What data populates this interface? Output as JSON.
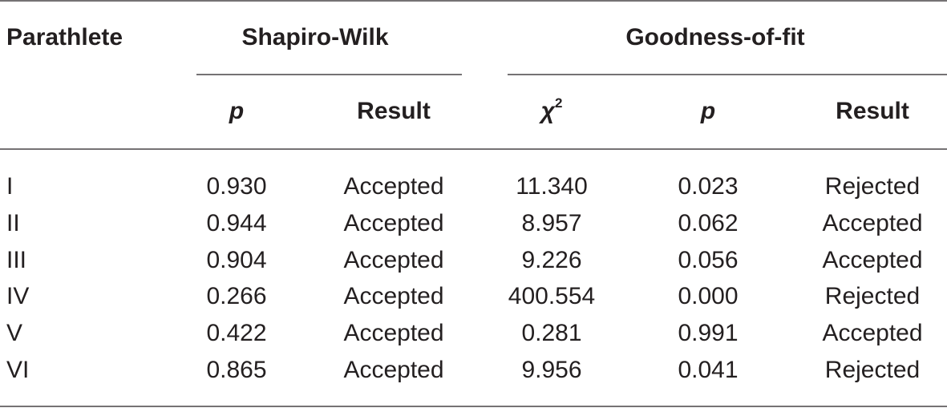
{
  "table": {
    "group_headers": [
      "Parathlete",
      "Shapiro-Wilk",
      "Goodness-of-fit"
    ],
    "sub_headers": [
      {
        "text": "p"
      },
      {
        "text": "Result"
      },
      {
        "text": "χ",
        "sup": "2"
      },
      {
        "text": "p"
      },
      {
        "text": "Result"
      }
    ],
    "rows": [
      [
        "I",
        "0.930",
        "Accepted",
        "11.340",
        "0.023",
        "Rejected"
      ],
      [
        "II",
        "0.944",
        "Accepted",
        "8.957",
        "0.062",
        "Accepted"
      ],
      [
        "III",
        "0.904",
        "Accepted",
        "9.226",
        "0.056",
        "Accepted"
      ],
      [
        "IV",
        "0.266",
        "Accepted",
        "400.554",
        "0.000",
        "Rejected"
      ],
      [
        "V",
        "0.422",
        "Accepted",
        "0.281",
        "0.991",
        "Accepted"
      ],
      [
        "VI",
        "0.865",
        "Accepted",
        "9.956",
        "0.041",
        "Rejected"
      ]
    ]
  }
}
